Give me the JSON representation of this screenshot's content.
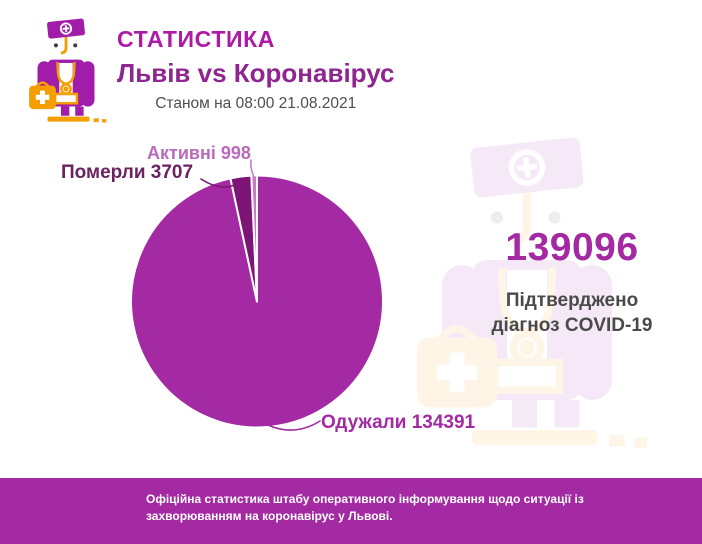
{
  "header": {
    "title": "СТАТИСТИКА",
    "subtitle": "Львів vs Коронавірус",
    "date_label": "Станом на 08:00 21.08.2021"
  },
  "stats": {
    "confirmed_value": "139096",
    "confirmed_caption_line1": "Підтверджено",
    "confirmed_caption_line2": "діагноз COVID-19"
  },
  "chart_data": {
    "type": "pie",
    "title": "Львів vs Коронавірус — Станом на 08:00 21.08.2021",
    "total": 139096,
    "direction": "clockwise",
    "start_angle_deg": 0,
    "slice_border_color": "#FFFFFF",
    "legend_position": "labels-with-leader-lines",
    "slices": [
      {
        "id": "recovered",
        "label": "Одужали",
        "value": 134391,
        "display": "Одужали 134391",
        "color": "#A32AA2",
        "label_color": "#A32AA2"
      },
      {
        "id": "died",
        "label": "Померли",
        "value": 3707,
        "display": "Померли 3707",
        "color": "#7D1577",
        "label_color": "#6B2262"
      },
      {
        "id": "active",
        "label": "Активні",
        "value": 998,
        "display": "Активні 998",
        "color": "#C97BC6",
        "label_color": "#BB69BB"
      }
    ]
  },
  "footer": {
    "text": "Офіційна статистика штабу оперативного інформування щодо ситуації із захворюванням на коронавірус у Львові.",
    "bg_color": "#A32AA2",
    "text_color": "#FFFFFF"
  },
  "colors": {
    "title_magenta": "#AE19A6",
    "title_purple": "#8E2591",
    "text_gray": "#4E4E4E",
    "confirmed_gray": "#4A4A4A",
    "accent_magenta": "#A32AA2",
    "icon_purple": "#A21CAA",
    "icon_orange": "#F59E00",
    "icon_eyes": "#4A3B35"
  },
  "icons": {
    "mascot": "doctor-mascot-icon",
    "watermark": "doctor-watermark-icon"
  }
}
